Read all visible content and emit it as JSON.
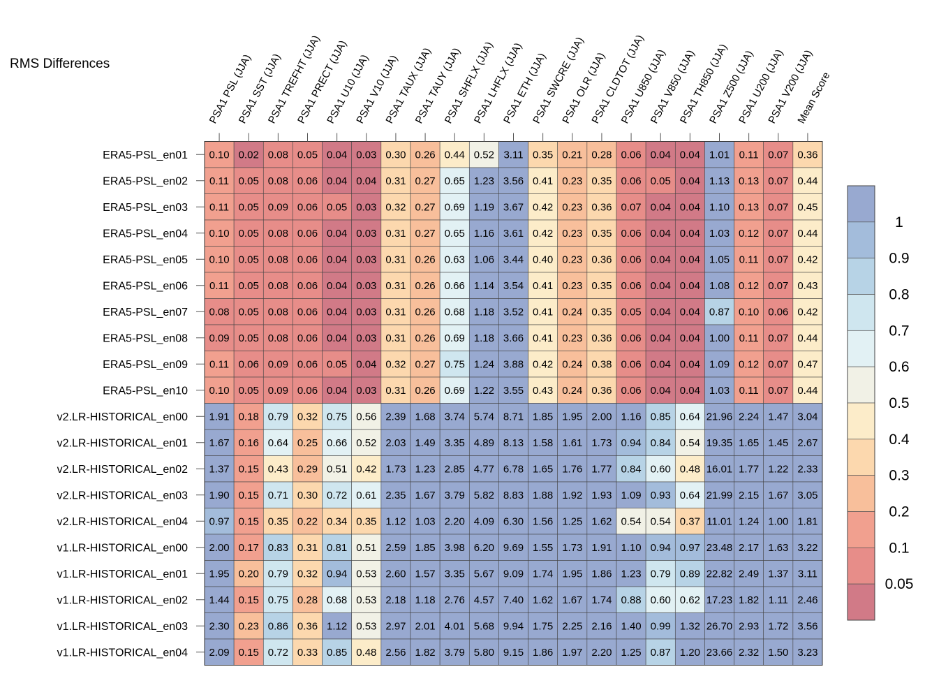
{
  "chart_data": {
    "type": "heatmap",
    "title": "RMS Differences",
    "columns": [
      "PSA1 PSL (JJA)",
      "PSA1 SST (JJA)",
      "PSA1 TREFHT (JJA)",
      "PSA1 PRECT (JJA)",
      "PSA1 U10 (JJA)",
      "PSA1 V10 (JJA)",
      "PSA1 TAUX (JJA)",
      "PSA1 TAUY (JJA)",
      "PSA1 SHFLX (JJA)",
      "PSA1 LHFLX (JJA)",
      "PSA1 ETH (JJA)",
      "PSA1 SWCRE (JJA)",
      "PSA1 OLR (JJA)",
      "PSA1 CLDTOT (JJA)",
      "PSA1 U850 (JJA)",
      "PSA1 V850 (JJA)",
      "PSA1 TH850 (JJA)",
      "PSA1 Z500 (JJA)",
      "PSA1 U200 (JJA)",
      "PSA1 V200 (JJA)",
      "Mean Score"
    ],
    "rows": [
      "ERA5-PSL_en01",
      "ERA5-PSL_en02",
      "ERA5-PSL_en03",
      "ERA5-PSL_en04",
      "ERA5-PSL_en05",
      "ERA5-PSL_en06",
      "ERA5-PSL_en07",
      "ERA5-PSL_en08",
      "ERA5-PSL_en09",
      "ERA5-PSL_en10",
      "v2.LR-HISTORICAL_en00",
      "v2.LR-HISTORICAL_en01",
      "v2.LR-HISTORICAL_en02",
      "v2.LR-HISTORICAL_en03",
      "v2.LR-HISTORICAL_en04",
      "v1.LR-HISTORICAL_en00",
      "v1.LR-HISTORICAL_en01",
      "v1.LR-HISTORICAL_en02",
      "v1.LR-HISTORICAL_en03",
      "v1.LR-HISTORICAL_en04"
    ],
    "values": [
      [
        "0.10",
        "0.02",
        "0.08",
        "0.05",
        "0.04",
        "0.03",
        "0.30",
        "0.26",
        "0.44",
        "0.52",
        "3.11",
        "0.35",
        "0.21",
        "0.28",
        "0.06",
        "0.04",
        "0.04",
        "1.01",
        "0.11",
        "0.07",
        "0.36"
      ],
      [
        "0.11",
        "0.05",
        "0.08",
        "0.06",
        "0.04",
        "0.04",
        "0.31",
        "0.27",
        "0.65",
        "1.23",
        "3.56",
        "0.41",
        "0.23",
        "0.35",
        "0.06",
        "0.05",
        "0.04",
        "1.13",
        "0.13",
        "0.07",
        "0.44"
      ],
      [
        "0.11",
        "0.05",
        "0.09",
        "0.06",
        "0.05",
        "0.03",
        "0.32",
        "0.27",
        "0.69",
        "1.19",
        "3.67",
        "0.42",
        "0.23",
        "0.36",
        "0.07",
        "0.04",
        "0.04",
        "1.10",
        "0.13",
        "0.07",
        "0.45"
      ],
      [
        "0.10",
        "0.05",
        "0.08",
        "0.06",
        "0.04",
        "0.03",
        "0.31",
        "0.27",
        "0.65",
        "1.16",
        "3.61",
        "0.42",
        "0.23",
        "0.35",
        "0.06",
        "0.04",
        "0.04",
        "1.03",
        "0.12",
        "0.07",
        "0.44"
      ],
      [
        "0.10",
        "0.05",
        "0.08",
        "0.06",
        "0.04",
        "0.03",
        "0.31",
        "0.26",
        "0.63",
        "1.06",
        "3.44",
        "0.40",
        "0.23",
        "0.36",
        "0.06",
        "0.04",
        "0.04",
        "1.05",
        "0.11",
        "0.07",
        "0.42"
      ],
      [
        "0.11",
        "0.05",
        "0.08",
        "0.06",
        "0.04",
        "0.03",
        "0.31",
        "0.26",
        "0.66",
        "1.14",
        "3.54",
        "0.41",
        "0.23",
        "0.35",
        "0.06",
        "0.04",
        "0.04",
        "1.08",
        "0.12",
        "0.07",
        "0.43"
      ],
      [
        "0.08",
        "0.05",
        "0.08",
        "0.06",
        "0.04",
        "0.03",
        "0.31",
        "0.26",
        "0.68",
        "1.18",
        "3.52",
        "0.41",
        "0.24",
        "0.35",
        "0.05",
        "0.04",
        "0.04",
        "0.87",
        "0.10",
        "0.06",
        "0.42"
      ],
      [
        "0.09",
        "0.05",
        "0.08",
        "0.06",
        "0.04",
        "0.03",
        "0.31",
        "0.26",
        "0.69",
        "1.18",
        "3.66",
        "0.41",
        "0.23",
        "0.36",
        "0.06",
        "0.04",
        "0.04",
        "1.00",
        "0.11",
        "0.07",
        "0.44"
      ],
      [
        "0.11",
        "0.06",
        "0.09",
        "0.06",
        "0.05",
        "0.04",
        "0.32",
        "0.27",
        "0.75",
        "1.24",
        "3.88",
        "0.42",
        "0.24",
        "0.38",
        "0.06",
        "0.04",
        "0.04",
        "1.09",
        "0.12",
        "0.07",
        "0.47"
      ],
      [
        "0.10",
        "0.05",
        "0.09",
        "0.06",
        "0.04",
        "0.03",
        "0.31",
        "0.26",
        "0.69",
        "1.22",
        "3.55",
        "0.43",
        "0.24",
        "0.36",
        "0.06",
        "0.04",
        "0.04",
        "1.03",
        "0.11",
        "0.07",
        "0.44"
      ],
      [
        "1.91",
        "0.18",
        "0.79",
        "0.32",
        "0.75",
        "0.56",
        "2.39",
        "1.68",
        "3.74",
        "5.74",
        "8.71",
        "1.85",
        "1.95",
        "2.00",
        "1.16",
        "0.85",
        "0.64",
        "21.96",
        "2.24",
        "1.47",
        "3.04"
      ],
      [
        "1.67",
        "0.16",
        "0.64",
        "0.25",
        "0.66",
        "0.52",
        "2.03",
        "1.49",
        "3.35",
        "4.89",
        "8.13",
        "1.58",
        "1.61",
        "1.73",
        "0.94",
        "0.84",
        "0.54",
        "19.35",
        "1.65",
        "1.45",
        "2.67"
      ],
      [
        "1.37",
        "0.15",
        "0.43",
        "0.29",
        "0.51",
        "0.42",
        "1.73",
        "1.23",
        "2.85",
        "4.77",
        "6.78",
        "1.65",
        "1.76",
        "1.77",
        "0.84",
        "0.60",
        "0.48",
        "16.01",
        "1.77",
        "1.22",
        "2.33"
      ],
      [
        "1.90",
        "0.15",
        "0.71",
        "0.30",
        "0.72",
        "0.61",
        "2.35",
        "1.67",
        "3.79",
        "5.82",
        "8.83",
        "1.88",
        "1.92",
        "1.93",
        "1.09",
        "0.93",
        "0.64",
        "21.99",
        "2.15",
        "1.67",
        "3.05"
      ],
      [
        "0.97",
        "0.15",
        "0.35",
        "0.22",
        "0.34",
        "0.35",
        "1.12",
        "1.03",
        "2.20",
        "4.09",
        "6.30",
        "1.56",
        "1.25",
        "1.62",
        "0.54",
        "0.54",
        "0.37",
        "11.01",
        "1.24",
        "1.00",
        "1.81"
      ],
      [
        "2.00",
        "0.17",
        "0.83",
        "0.31",
        "0.81",
        "0.51",
        "2.59",
        "1.85",
        "3.98",
        "6.20",
        "9.69",
        "1.55",
        "1.73",
        "1.91",
        "1.10",
        "0.94",
        "0.97",
        "23.48",
        "2.17",
        "1.63",
        "3.22"
      ],
      [
        "1.95",
        "0.20",
        "0.79",
        "0.32",
        "0.94",
        "0.53",
        "2.60",
        "1.57",
        "3.35",
        "5.67",
        "9.09",
        "1.74",
        "1.95",
        "1.86",
        "1.23",
        "0.79",
        "0.89",
        "22.82",
        "2.49",
        "1.37",
        "3.11"
      ],
      [
        "1.44",
        "0.15",
        "0.75",
        "0.28",
        "0.68",
        "0.53",
        "2.18",
        "1.18",
        "2.76",
        "4.57",
        "7.40",
        "1.62",
        "1.67",
        "1.74",
        "0.88",
        "0.60",
        "0.62",
        "17.23",
        "1.82",
        "1.11",
        "2.46"
      ],
      [
        "2.30",
        "0.23",
        "0.86",
        "0.36",
        "1.12",
        "0.53",
        "2.97",
        "2.01",
        "4.01",
        "5.68",
        "9.94",
        "1.75",
        "2.25",
        "2.16",
        "1.40",
        "0.99",
        "1.32",
        "26.70",
        "2.93",
        "1.72",
        "3.56"
      ],
      [
        "2.09",
        "0.15",
        "0.72",
        "0.33",
        "0.85",
        "0.48",
        "2.56",
        "1.82",
        "3.79",
        "5.80",
        "9.15",
        "1.86",
        "1.97",
        "2.20",
        "1.25",
        "0.87",
        "1.20",
        "23.66",
        "2.32",
        "1.50",
        "3.23"
      ]
    ],
    "colorbar": {
      "labels": [
        "1",
        "0.9",
        "0.8",
        "0.7",
        "0.6",
        "0.5",
        "0.4",
        "0.3",
        "0.2",
        "0.1",
        "0.05"
      ],
      "colors": [
        "#98a9d0",
        "#a3bcdb",
        "#b7d3e6",
        "#cfe6ef",
        "#e2f1f4",
        "#f1f1e6",
        "#fcecc9",
        "#fcd8ae",
        "#f8bf9b",
        "#f1a08f",
        "#e78d89",
        "#d17a87"
      ]
    }
  }
}
